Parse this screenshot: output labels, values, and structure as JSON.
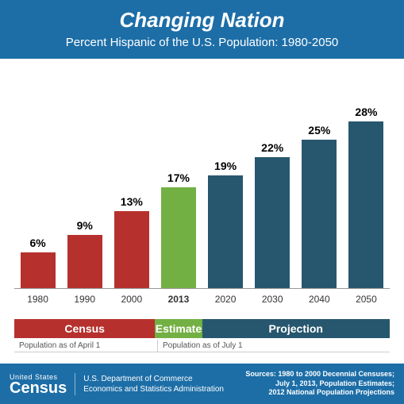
{
  "header": {
    "title": "Changing Nation",
    "subtitle": "Percent Hispanic of the U.S. Population: 1980-2050"
  },
  "chart": {
    "type": "bar",
    "max_percent": 32,
    "bars": [
      {
        "year": "1980",
        "value": 6,
        "label": "6%",
        "color": "#b6312d",
        "bold_year": false
      },
      {
        "year": "1990",
        "value": 9,
        "label": "9%",
        "color": "#b6312d",
        "bold_year": false
      },
      {
        "year": "2000",
        "value": 13,
        "label": "13%",
        "color": "#b6312d",
        "bold_year": false
      },
      {
        "year": "2013",
        "value": 17,
        "label": "17%",
        "color": "#73b043",
        "bold_year": true
      },
      {
        "year": "2020",
        "value": 19,
        "label": "19%",
        "color": "#27576e",
        "bold_year": false
      },
      {
        "year": "2030",
        "value": 22,
        "label": "22%",
        "color": "#27576e",
        "bold_year": false
      },
      {
        "year": "2040",
        "value": 25,
        "label": "25%",
        "color": "#27576e",
        "bold_year": false
      },
      {
        "year": "2050",
        "value": 28,
        "label": "28%",
        "color": "#27576e",
        "bold_year": false
      }
    ]
  },
  "legend": {
    "census": "Census",
    "estimate": "Estimate",
    "projection": "Projection"
  },
  "notes": {
    "left": "Population as of April 1",
    "right": "Population as of July 1"
  },
  "footer": {
    "logo_top": "United States",
    "logo_main": "Census",
    "dept_line1": "U.S. Department of Commerce",
    "dept_line2": "Economics and Statistics Administration",
    "sources_line1": "Sources: 1980 to 2000 Decennial Censuses;",
    "sources_line2": "July 1, 2013, Population Estimates;",
    "sources_line3": "2012 National Population Projections"
  }
}
